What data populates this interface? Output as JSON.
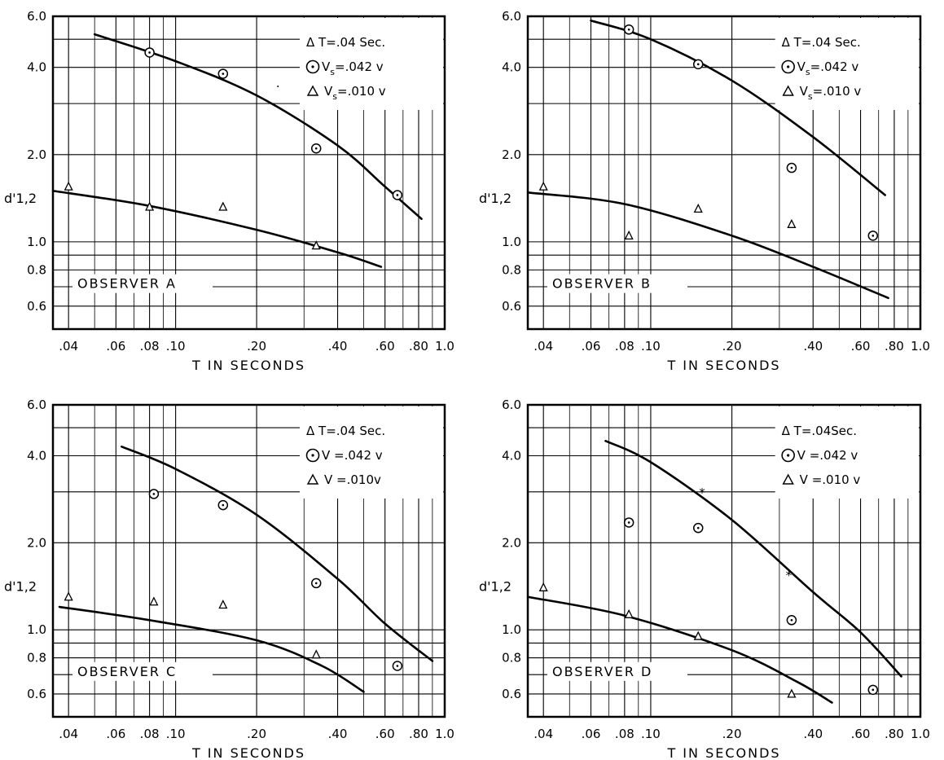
{
  "chart_data": [
    {
      "type": "scatter",
      "observer_label": "OBSERVER A",
      "xlabel": "T IN SECONDS",
      "ylabel": "d'1,2",
      "xscale": "log",
      "yscale": "log",
      "xlim": [
        0.035,
        1.0
      ],
      "ylim": [
        0.5,
        6.0
      ],
      "xticks": [
        0.04,
        0.06,
        0.08,
        0.1,
        0.2,
        0.4,
        0.6,
        0.8,
        1.0
      ],
      "xtick_labels": [
        ".04",
        ".06",
        ".08",
        ".10",
        ".20",
        ".40",
        ".60",
        ".80",
        "1.0"
      ],
      "yticks": [
        0.6,
        0.8,
        1.0,
        2.0,
        4.0,
        6.0
      ],
      "ytick_labels": [
        "0.6",
        "0.8",
        "1.0",
        "2.0",
        "4.0",
        "6.0"
      ],
      "legend": {
        "line1": "Δ T=.04 Sec.",
        "line2_main": "V",
        "line2_sub": "s",
        "line2_rest": "=.042 v",
        "line3_main": "V",
        "line3_sub": "s",
        "line3_rest": "=.010 v"
      },
      "series": [
        {
          "name": "Vs=.042 v",
          "marker": "circle-dot",
          "points": [
            [
              0.08,
              4.5
            ],
            [
              0.15,
              3.8
            ],
            [
              0.333,
              2.1
            ],
            [
              0.667,
              1.45
            ]
          ],
          "curve": [
            [
              0.05,
              5.2
            ],
            [
              0.1,
              4.2
            ],
            [
              0.2,
              3.2
            ],
            [
              0.4,
              2.15
            ],
            [
              0.6,
              1.55
            ],
            [
              0.82,
              1.2
            ]
          ]
        },
        {
          "name": "Vs=.010 v",
          "marker": "triangle",
          "points": [
            [
              0.04,
              1.55
            ],
            [
              0.08,
              1.32
            ],
            [
              0.15,
              1.32
            ],
            [
              0.333,
              0.97
            ]
          ],
          "curve": [
            [
              0.035,
              1.5
            ],
            [
              0.08,
              1.33
            ],
            [
              0.2,
              1.1
            ],
            [
              0.4,
              0.92
            ],
            [
              0.58,
              0.82
            ]
          ]
        }
      ],
      "annotations": [
        {
          "text": "·",
          "x": 0.24,
          "y": 3.45
        }
      ]
    },
    {
      "type": "scatter",
      "observer_label": "OBSERVER B",
      "xlabel": "T IN SECONDS",
      "ylabel": "d'1,2",
      "xscale": "log",
      "yscale": "log",
      "xlim": [
        0.035,
        1.0
      ],
      "ylim": [
        0.5,
        6.0
      ],
      "xticks": [
        0.04,
        0.06,
        0.08,
        0.1,
        0.2,
        0.4,
        0.6,
        0.8,
        1.0
      ],
      "xtick_labels": [
        ".04",
        ".06",
        ".08",
        ".10",
        ".20",
        ".40",
        ".60",
        ".80",
        "1.0"
      ],
      "yticks": [
        0.6,
        0.8,
        1.0,
        2.0,
        4.0,
        6.0
      ],
      "ytick_labels": [
        "0.6",
        "0.8",
        "1.0",
        "2.0",
        "4.0",
        "6.0"
      ],
      "legend": {
        "line1": "Δ T=.04 Sec.",
        "line2_main": "V",
        "line2_sub": "s",
        "line2_rest": "=.042 v",
        "line3_main": "V",
        "line3_sub": "s",
        "line3_rest": "=.010 v"
      },
      "series": [
        {
          "name": "Vs=.042 v",
          "marker": "circle-dot",
          "points": [
            [
              0.083,
              5.4
            ],
            [
              0.15,
              4.1
            ],
            [
              0.333,
              1.8
            ],
            [
              0.667,
              1.05
            ]
          ],
          "curve": [
            [
              0.06,
              5.8
            ],
            [
              0.1,
              5.0
            ],
            [
              0.2,
              3.6
            ],
            [
              0.4,
              2.3
            ],
            [
              0.74,
              1.45
            ]
          ]
        },
        {
          "name": "Vs=.010 v",
          "marker": "triangle",
          "points": [
            [
              0.04,
              1.55
            ],
            [
              0.083,
              1.05
            ],
            [
              0.15,
              1.3
            ],
            [
              0.333,
              1.15
            ]
          ],
          "curve": [
            [
              0.035,
              1.48
            ],
            [
              0.08,
              1.35
            ],
            [
              0.2,
              1.05
            ],
            [
              0.4,
              0.82
            ],
            [
              0.76,
              0.64
            ]
          ]
        }
      ],
      "annotations": []
    },
    {
      "type": "scatter",
      "observer_label": "OBSERVER C",
      "xlabel": "T IN SECONDS",
      "ylabel": "d'1,2",
      "xscale": "log",
      "yscale": "log",
      "xlim": [
        0.035,
        1.0
      ],
      "ylim": [
        0.5,
        6.0
      ],
      "xticks": [
        0.04,
        0.06,
        0.08,
        0.1,
        0.2,
        0.4,
        0.6,
        0.8,
        1.0
      ],
      "xtick_labels": [
        ".04",
        ".06",
        ".08",
        ".10",
        ".20",
        ".40",
        ".60",
        ".80",
        "1.0"
      ],
      "yticks": [
        0.6,
        0.8,
        1.0,
        2.0,
        4.0,
        6.0
      ],
      "ytick_labels": [
        "0.6",
        "0.8",
        "1.0",
        "2.0",
        "4.0",
        "6.0"
      ],
      "legend": {
        "line1": "Δ T=.04 Sec.",
        "line2_main": "V",
        "line2_sub": "",
        "line2_rest": "=.042 v",
        "line3_main": "V",
        "line3_sub": "",
        "line3_rest": "=.010v"
      },
      "series": [
        {
          "name": "V=.042 v",
          "marker": "circle-dot",
          "points": [
            [
              0.083,
              2.95
            ],
            [
              0.15,
              2.7
            ],
            [
              0.333,
              1.45
            ],
            [
              0.667,
              0.75
            ]
          ],
          "curve": [
            [
              0.063,
              4.3
            ],
            [
              0.1,
              3.6
            ],
            [
              0.2,
              2.5
            ],
            [
              0.4,
              1.5
            ],
            [
              0.6,
              1.05
            ],
            [
              0.9,
              0.78
            ]
          ]
        },
        {
          "name": "V=.010v",
          "marker": "triangle",
          "points": [
            [
              0.04,
              1.3
            ],
            [
              0.083,
              1.25
            ],
            [
              0.15,
              1.22
            ],
            [
              0.333,
              0.82
            ]
          ],
          "curve": [
            [
              0.037,
              1.2
            ],
            [
              0.08,
              1.08
            ],
            [
              0.2,
              0.92
            ],
            [
              0.35,
              0.75
            ],
            [
              0.5,
              0.61
            ]
          ]
        }
      ],
      "annotations": []
    },
    {
      "type": "scatter",
      "observer_label": "OBSERVER D",
      "xlabel": "T IN SECONDS",
      "ylabel": "d'1,2",
      "xscale": "log",
      "yscale": "log",
      "xlim": [
        0.035,
        1.0
      ],
      "ylim": [
        0.5,
        6.0
      ],
      "xticks": [
        0.04,
        0.06,
        0.08,
        0.1,
        0.2,
        0.4,
        0.6,
        0.8,
        1.0
      ],
      "xtick_labels": [
        ".04",
        ".06",
        ".08",
        ".10",
        ".20",
        ".40",
        ".60",
        ".80",
        "1.0"
      ],
      "yticks": [
        0.6,
        0.8,
        1.0,
        2.0,
        4.0,
        6.0
      ],
      "ytick_labels": [
        "0.6",
        "0.8",
        "1.0",
        "2.0",
        "4.0",
        "6.0"
      ],
      "legend": {
        "line1": "Δ T=.04Sec.",
        "line2_main": "V",
        "line2_sub": "",
        "line2_rest": "=.042 v",
        "line3_main": "V",
        "line3_sub": "",
        "line3_rest": "=.010 v"
      },
      "series": [
        {
          "name": "V=.042 v",
          "marker": "circle-dot",
          "points": [
            [
              0.083,
              2.35
            ],
            [
              0.15,
              2.25
            ],
            [
              0.333,
              1.08
            ],
            [
              0.667,
              0.62
            ]
          ],
          "curve": [
            [
              0.068,
              4.5
            ],
            [
              0.1,
              3.8
            ],
            [
              0.2,
              2.4
            ],
            [
              0.4,
              1.35
            ],
            [
              0.6,
              0.98
            ],
            [
              0.85,
              0.69
            ]
          ]
        },
        {
          "name": "V=.010 v",
          "marker": "triangle",
          "points": [
            [
              0.04,
              1.4
            ],
            [
              0.083,
              1.13
            ],
            [
              0.15,
              0.95
            ],
            [
              0.333,
              0.6
            ]
          ],
          "curve": [
            [
              0.035,
              1.3
            ],
            [
              0.08,
              1.12
            ],
            [
              0.2,
              0.85
            ],
            [
              0.35,
              0.66
            ],
            [
              0.47,
              0.56
            ]
          ]
        }
      ],
      "annotations": [
        {
          "text": "*",
          "x": 0.155,
          "y": 3.0
        },
        {
          "text": "*",
          "x": 0.325,
          "y": 1.55
        }
      ]
    }
  ]
}
